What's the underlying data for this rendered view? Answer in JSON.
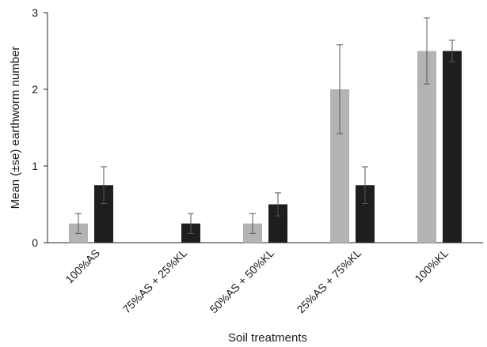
{
  "chart_data": {
    "type": "bar",
    "title": "",
    "xlabel": "Soil treatments",
    "ylabel": "Mean (±se) earthworm number",
    "ylim": [
      0,
      3
    ],
    "yticks": [
      "0",
      "1",
      "2",
      "3"
    ],
    "categories": [
      "100%AS",
      "75%AS + 25%KL",
      "50%AS + 50%KL",
      "25%AS + 75%KL",
      "100%KL"
    ],
    "series": [
      {
        "color": "#b3b3b3",
        "values": [
          0.25,
          0,
          0.25,
          2.0,
          2.5
        ],
        "errors": [
          0.13,
          0,
          0.13,
          0.58,
          0.43
        ]
      },
      {
        "color": "#1e1e1e",
        "values": [
          0.75,
          0.25,
          0.5,
          0.75,
          2.5
        ],
        "errors": [
          0.24,
          0.13,
          0.15,
          0.24,
          0.14
        ]
      }
    ],
    "grid": false,
    "legend": "none"
  }
}
